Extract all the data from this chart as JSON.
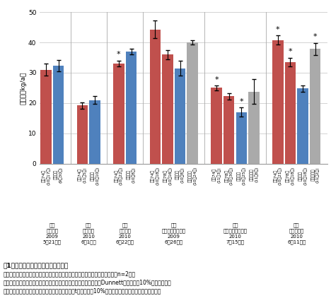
{
  "ylabel": "子実量（kg/a）",
  "ylim": [
    0,
    50
  ],
  "yticks": [
    0,
    10,
    20,
    30,
    40,
    50
  ],
  "groups": [
    {
      "location_lines": [
        "新潟",
        "（長岡、",
        "2009",
        "5月21日）"
      ],
      "bars": [
        {
          "label_lines": [
            "作系74号",
            "(10月17日)"
          ],
          "value": 31.0,
          "error": 2.0,
          "color": "#C0504D",
          "star": false
        },
        {
          "label_lines": [
            "エンレイ",
            "(9月30日)"
          ],
          "value": 32.3,
          "error": 1.8,
          "color": "#4F81BD",
          "star": false
        }
      ]
    },
    {
      "location_lines": [
        "長野",
        "（塩尻、",
        "2010",
        "6月1日）"
      ],
      "bars": [
        {
          "label_lines": [
            "作系74号",
            "(11月5日)"
          ],
          "value": 19.2,
          "error": 1.0,
          "color": "#C0504D",
          "star": false
        },
        {
          "label_lines": [
            "エンレイ",
            "(10月10日)"
          ],
          "value": 21.0,
          "error": 1.2,
          "color": "#4F81BD",
          "star": false
        }
      ]
    },
    {
      "location_lines": [
        "茈城",
        "（水戸、",
        "2010",
        "6月22日）"
      ],
      "bars": [
        {
          "label_lines": [
            "作系74号",
            "(10月22日)"
          ],
          "value": 33.0,
          "error": 1.0,
          "color": "#C0504D",
          "star": true
        },
        {
          "label_lines": [
            "エンレイ",
            "(10月8日)"
          ],
          "value": 37.0,
          "error": 1.0,
          "color": "#4F81BD",
          "star": false
        }
      ]
    },
    {
      "location_lines": [
        "茈城",
        "（つくばみらい、",
        "2009",
        "6月26日）"
      ],
      "bars": [
        {
          "label_lines": [
            "作系74号",
            "(10月18日)"
          ],
          "value": 44.3,
          "error": 3.0,
          "color": "#C0504D",
          "star": false
        },
        {
          "label_lines": [
            "作系78号",
            "(10月16日)"
          ],
          "value": 36.0,
          "error": 1.5,
          "color": "#C0504D",
          "star": false
        },
        {
          "label_lines": [
            "エンレイ",
            "(10月8日)"
          ],
          "value": 31.5,
          "error": 2.5,
          "color": "#4F81BD",
          "star": false
        },
        {
          "label_lines": [
            "サチユタカ",
            "(10月24日)"
          ],
          "value": 40.0,
          "error": 0.8,
          "color": "#AAAAAA",
          "star": false
        }
      ]
    },
    {
      "location_lines": [
        "茈城",
        "（つくばみらい、",
        "2010",
        "7月15日）"
      ],
      "bars": [
        {
          "label_lines": [
            "作系74号",
            "(11月3日)"
          ],
          "value": 25.0,
          "error": 0.8,
          "color": "#C0504D",
          "star": true
        },
        {
          "label_lines": [
            "作系78号",
            "(10月30日)"
          ],
          "value": 22.2,
          "error": 1.0,
          "color": "#C0504D",
          "star": false
        },
        {
          "label_lines": [
            "エンレイ",
            "(10月25日)"
          ],
          "value": 17.0,
          "error": 1.5,
          "color": "#4F81BD",
          "star": true
        },
        {
          "label_lines": [
            "サチユタカ",
            "(11月6日)"
          ],
          "value": 23.8,
          "error": 4.0,
          "color": "#AAAAAA",
          "star": false
        }
      ]
    },
    {
      "location_lines": [
        "香川",
        "（善通寺、",
        "2010",
        "6月11日）"
      ],
      "bars": [
        {
          "label_lines": [
            "作系74号",
            "(10月21日)"
          ],
          "value": 40.8,
          "error": 1.5,
          "color": "#C0504D",
          "star": true
        },
        {
          "label_lines": [
            "作系78号",
            "(10月18日)"
          ],
          "value": 33.5,
          "error": 1.5,
          "color": "#C0504D",
          "star": true
        },
        {
          "label_lines": [
            "エンレイ",
            "(10月18日)"
          ],
          "value": 24.8,
          "error": 1.0,
          "color": "#4F81BD",
          "star": false
        },
        {
          "label_lines": [
            "サチユタカ",
            "(11月2日)"
          ],
          "value": 37.8,
          "error": 2.0,
          "color": "#AAAAAA",
          "star": true
        }
      ]
    }
  ],
  "caption_lines": [
    "図1　晴成化系統と標準品種の収量性",
    "試験地の日付は播種日、品種・系統の日付は成熟期を示す。縦棒は標準誤差（n=2）。",
    "＊は茈城（つくばみらい）、香川についてはエンレイを標準としたDunnett検定で両噈10%水準で有意な",
    "差異があることを示し、茈城（水戸）についてはt検定で両噈10%水準で有意な差異があることを示す。"
  ]
}
